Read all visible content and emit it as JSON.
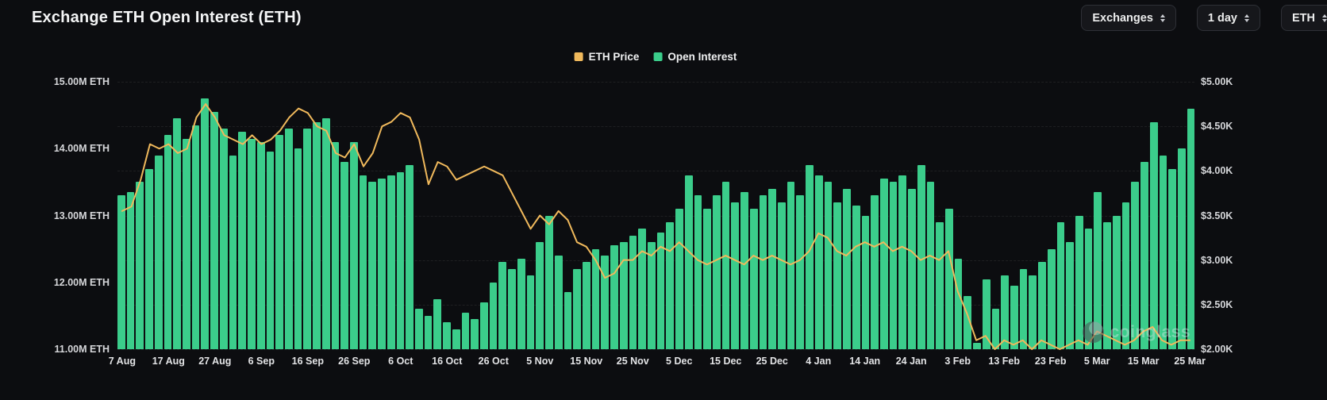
{
  "header": {
    "title": "Exchange ETH Open Interest (ETH)",
    "controls": [
      {
        "label": "Exchanges"
      },
      {
        "label": "1 day"
      },
      {
        "label": "ETH"
      }
    ]
  },
  "legend": {
    "items": [
      {
        "label": "ETH Price",
        "color": "#f0b95c"
      },
      {
        "label": "Open Interest",
        "color": "#3bcd8b"
      }
    ]
  },
  "watermark": "coinglass",
  "colors": {
    "background": "#0c0d10",
    "bar_green": "#3bcd8b",
    "line_orange": "#f0b95c"
  },
  "chart_data": {
    "type": "bar+line",
    "title": "Exchange ETH Open Interest (ETH)",
    "sample_spacing_days": 2,
    "x_range": [
      "7 Aug",
      "25 Mar"
    ],
    "grid": "horizontal-dashed",
    "legend_position": "top-center",
    "left_axis": {
      "unit": "M ETH",
      "range": [
        11,
        15
      ],
      "labels": [
        "15.00M ETH",
        "14.00M ETH",
        "13.00M ETH",
        "12.00M ETH",
        "11.00M ETH"
      ]
    },
    "right_axis": {
      "unit": "$K",
      "range": [
        2.0,
        5.0
      ],
      "labels": [
        "$5.00K",
        "$4.50K",
        "$4.00K",
        "$3.50K",
        "$3.00K",
        "$2.50K",
        "$2.00K"
      ]
    },
    "x_ticks": {
      "indices": [
        0,
        5,
        10,
        15,
        20,
        25,
        30,
        35,
        40,
        45,
        50,
        55,
        60,
        65,
        70,
        75,
        80,
        85,
        90,
        95,
        100,
        105,
        110,
        115
      ],
      "labels": [
        "7 Aug",
        "17 Aug",
        "27 Aug",
        "6 Sep",
        "16 Sep",
        "26 Sep",
        "6 Oct",
        "16 Oct",
        "26 Oct",
        "5 Nov",
        "15 Nov",
        "25 Nov",
        "5 Dec",
        "15 Dec",
        "25 Dec",
        "4 Jan",
        "14 Jan",
        "24 Jan",
        "3 Feb",
        "13 Feb",
        "23 Feb",
        "5 Mar",
        "15 Mar",
        "25 Mar"
      ]
    },
    "series": [
      {
        "name": "Open Interest",
        "type": "bar",
        "axis": "left",
        "color": "#3bcd8b",
        "values": [
          13.3,
          13.35,
          13.5,
          13.7,
          13.9,
          14.2,
          14.45,
          14.15,
          14.35,
          14.75,
          14.55,
          14.3,
          13.9,
          14.25,
          14.15,
          14.1,
          13.95,
          14.2,
          14.3,
          14.0,
          14.3,
          14.4,
          14.45,
          14.1,
          13.8,
          14.1,
          13.6,
          13.5,
          13.55,
          13.6,
          13.65,
          13.75,
          11.6,
          11.5,
          11.75,
          11.4,
          11.3,
          11.55,
          11.45,
          11.7,
          12.0,
          12.3,
          12.2,
          12.35,
          12.1,
          12.6,
          13.0,
          12.4,
          11.85,
          12.2,
          12.3,
          12.5,
          12.4,
          12.55,
          12.6,
          12.7,
          12.8,
          12.6,
          12.75,
          12.9,
          13.1,
          13.6,
          13.3,
          13.1,
          13.3,
          13.5,
          13.2,
          13.35,
          13.1,
          13.3,
          13.4,
          13.2,
          13.5,
          13.3,
          13.75,
          13.6,
          13.5,
          13.2,
          13.4,
          13.15,
          13.0,
          13.3,
          13.55,
          13.5,
          13.6,
          13.4,
          13.75,
          13.5,
          12.9,
          13.1,
          12.35,
          11.8,
          11.1,
          12.05,
          11.6,
          12.1,
          11.95,
          12.2,
          12.1,
          12.3,
          12.5,
          12.9,
          12.6,
          13.0,
          12.8,
          13.35,
          12.9,
          13.0,
          13.2,
          13.5,
          13.8,
          14.4,
          13.9,
          13.7,
          14.0,
          14.6
        ]
      },
      {
        "name": "ETH Price",
        "type": "line",
        "axis": "right",
        "color": "#f0b95c",
        "values": [
          3.55,
          3.6,
          3.9,
          4.3,
          4.25,
          4.3,
          4.2,
          4.25,
          4.6,
          4.75,
          4.6,
          4.4,
          4.35,
          4.3,
          4.4,
          4.3,
          4.35,
          4.45,
          4.6,
          4.7,
          4.65,
          4.5,
          4.45,
          4.2,
          4.15,
          4.3,
          4.05,
          4.2,
          4.5,
          4.55,
          4.65,
          4.6,
          4.35,
          3.85,
          4.1,
          4.05,
          3.9,
          3.95,
          4.0,
          4.05,
          4.0,
          3.95,
          3.75,
          3.55,
          3.35,
          3.5,
          3.4,
          3.55,
          3.45,
          3.2,
          3.15,
          3.0,
          2.8,
          2.85,
          3.0,
          3.0,
          3.1,
          3.05,
          3.15,
          3.1,
          3.2,
          3.1,
          3.0,
          2.95,
          3.0,
          3.05,
          3.0,
          2.95,
          3.05,
          3.0,
          3.05,
          3.0,
          2.95,
          3.0,
          3.1,
          3.3,
          3.25,
          3.1,
          3.05,
          3.15,
          3.2,
          3.15,
          3.2,
          3.1,
          3.15,
          3.1,
          3.0,
          3.05,
          3.0,
          3.1,
          2.65,
          2.4,
          2.1,
          2.15,
          2.0,
          2.1,
          2.05,
          2.1,
          2.0,
          2.1,
          2.05,
          2.0,
          2.05,
          2.1,
          2.05,
          2.2,
          2.15,
          2.1,
          2.05,
          2.1,
          2.2,
          2.25,
          2.1,
          2.05,
          2.1,
          2.1
        ]
      }
    ]
  }
}
